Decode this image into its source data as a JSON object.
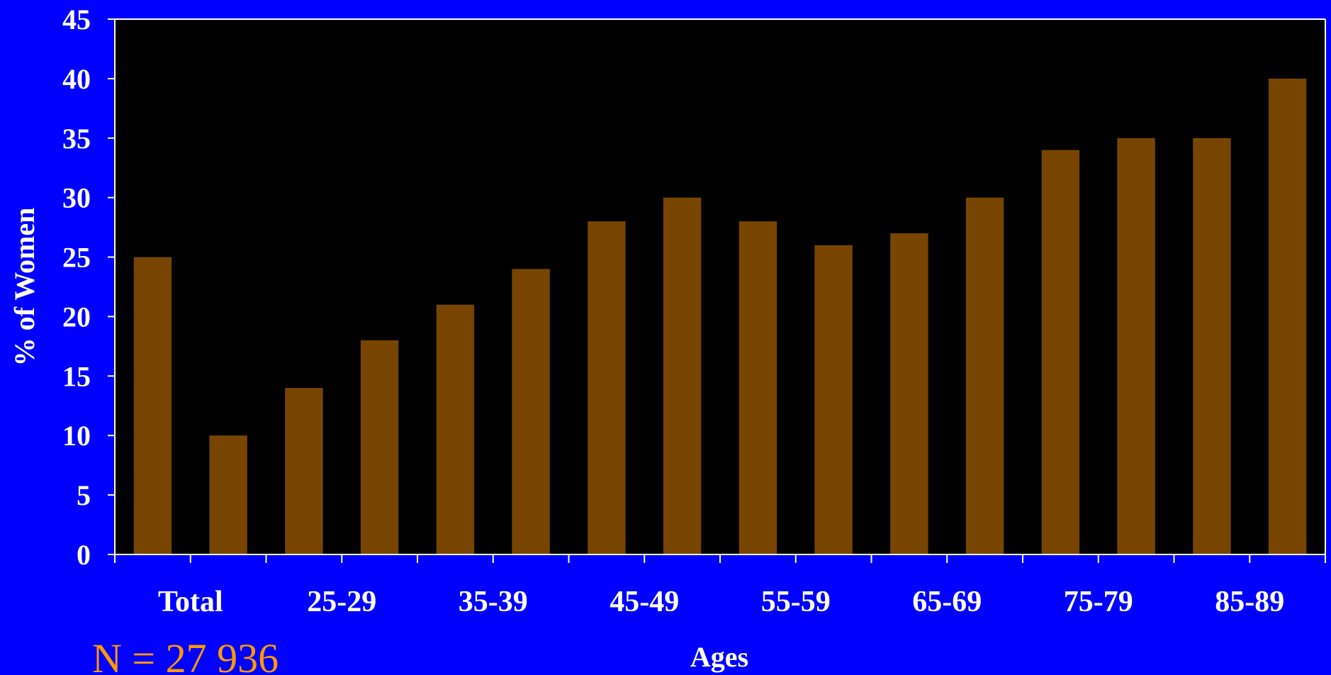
{
  "chart_data": {
    "type": "bar",
    "categories": [
      "Total",
      "",
      "25-29",
      "",
      "35-39",
      "",
      "45-49",
      "",
      "55-59",
      "",
      "65-69",
      "",
      "75-79",
      "",
      "85-89",
      ""
    ],
    "values": [
      25,
      10,
      14,
      18,
      21,
      24,
      28,
      30,
      28,
      26,
      27,
      30,
      34,
      35,
      35,
      40
    ],
    "ylabel": "% of Women",
    "xlabel": "Ages",
    "ylim": [
      0,
      45
    ],
    "yticks": [
      0,
      5,
      10,
      15,
      20,
      25,
      30,
      35,
      40,
      45
    ],
    "grid": false,
    "legend": "none",
    "colors": {
      "background": "#0000ff",
      "plot_area": "#000000",
      "bar": "#774500",
      "axis": "#ffffff",
      "text": "#ffffff",
      "note": "#ff9900"
    }
  },
  "note": "N = 27 936"
}
